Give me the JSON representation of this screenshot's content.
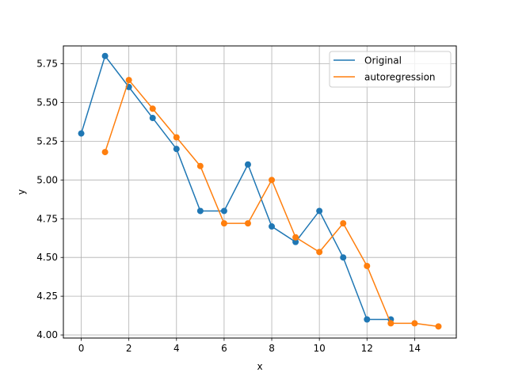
{
  "chart_data": {
    "type": "line",
    "title": "",
    "xlabel": "x",
    "ylabel": "y",
    "xlim": [
      -0.75,
      15.75
    ],
    "ylim": [
      3.98,
      5.865
    ],
    "xticks": [
      0,
      2,
      4,
      6,
      8,
      10,
      12,
      14
    ],
    "xtick_labels": [
      "0",
      "2",
      "4",
      "6",
      "8",
      "10",
      "12",
      "14"
    ],
    "yticks": [
      4.0,
      4.25,
      4.5,
      4.75,
      5.0,
      5.25,
      5.5,
      5.75
    ],
    "ytick_labels": [
      "4.00",
      "4.25",
      "4.50",
      "4.75",
      "5.00",
      "5.25",
      "5.50",
      "5.75"
    ],
    "grid": true,
    "legend_position": "top-right",
    "series": [
      {
        "name": "Original",
        "color": "#1f77b4",
        "markers": true,
        "x": [
          0,
          1,
          2,
          3,
          4,
          5,
          6,
          7,
          8,
          9,
          10,
          11,
          12,
          13
        ],
        "y": [
          5.3,
          5.8,
          5.6,
          5.4,
          5.2,
          4.8,
          4.8,
          5.1,
          4.7,
          4.6,
          4.8,
          4.5,
          4.1,
          4.1
        ]
      },
      {
        "name": "autoregression",
        "color": "#ff7f0e",
        "markers": true,
        "x": [
          1,
          2,
          3,
          4,
          5,
          6,
          7,
          8,
          9,
          10,
          11,
          12,
          13,
          14,
          15
        ],
        "y": [
          5.18,
          5.645,
          5.46,
          5.275,
          5.09,
          4.72,
          4.72,
          5.0,
          4.63,
          4.535,
          4.72,
          4.445,
          4.075,
          4.075,
          4.055
        ]
      }
    ]
  }
}
